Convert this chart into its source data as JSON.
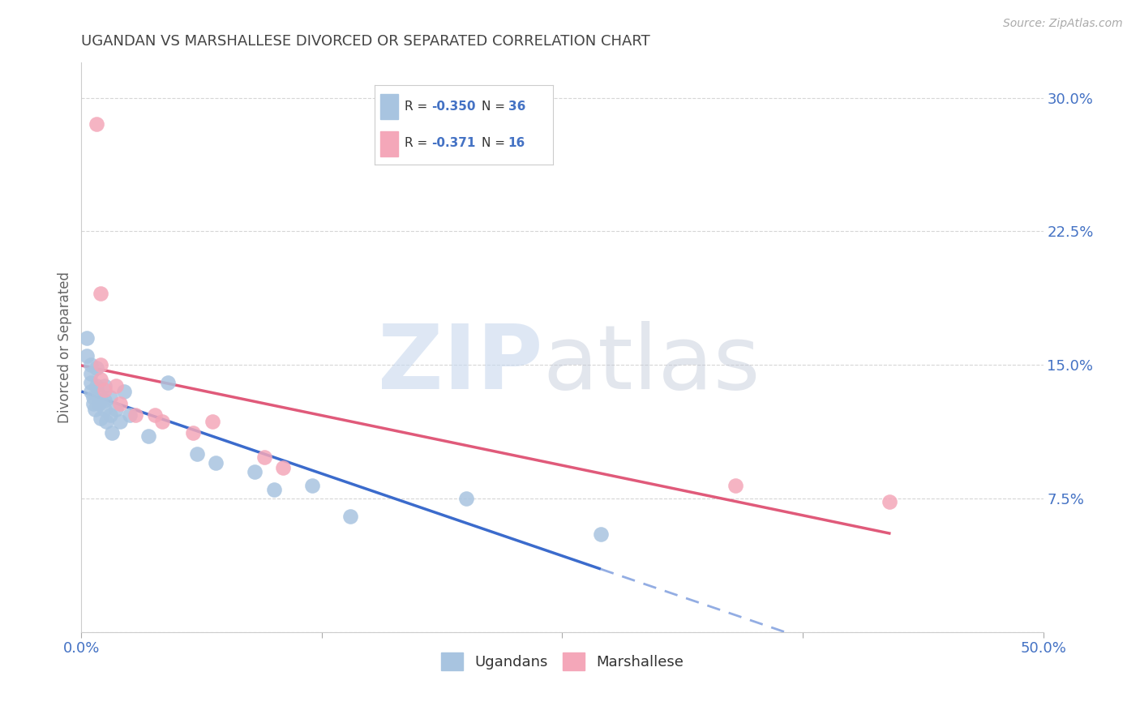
{
  "title": "UGANDAN VS MARSHALLESE DIVORCED OR SEPARATED CORRELATION CHART",
  "source": "Source: ZipAtlas.com",
  "ylabel_label": "Divorced or Separated",
  "xlim": [
    0.0,
    0.5
  ],
  "ylim": [
    0.0,
    0.32
  ],
  "ugandan_R": "-0.350",
  "ugandan_N": "36",
  "marshallese_R": "-0.371",
  "marshallese_N": "16",
  "ugandan_color": "#a8c4e0",
  "marshallese_color": "#f4a7b9",
  "ugandan_line_color": "#3b6bcc",
  "marshallese_line_color": "#e05a7a",
  "watermark_zip": "ZIP",
  "watermark_atlas": "atlas",
  "ugandan_points": [
    [
      0.003,
      0.165
    ],
    [
      0.003,
      0.155
    ],
    [
      0.005,
      0.15
    ],
    [
      0.005,
      0.145
    ],
    [
      0.005,
      0.14
    ],
    [
      0.005,
      0.135
    ],
    [
      0.006,
      0.132
    ],
    [
      0.006,
      0.128
    ],
    [
      0.007,
      0.125
    ],
    [
      0.008,
      0.148
    ],
    [
      0.008,
      0.138
    ],
    [
      0.009,
      0.133
    ],
    [
      0.009,
      0.128
    ],
    [
      0.01,
      0.13
    ],
    [
      0.01,
      0.12
    ],
    [
      0.012,
      0.138
    ],
    [
      0.012,
      0.13
    ],
    [
      0.012,
      0.125
    ],
    [
      0.013,
      0.118
    ],
    [
      0.015,
      0.132
    ],
    [
      0.015,
      0.122
    ],
    [
      0.016,
      0.112
    ],
    [
      0.018,
      0.125
    ],
    [
      0.02,
      0.118
    ],
    [
      0.022,
      0.135
    ],
    [
      0.025,
      0.122
    ],
    [
      0.035,
      0.11
    ],
    [
      0.045,
      0.14
    ],
    [
      0.06,
      0.1
    ],
    [
      0.07,
      0.095
    ],
    [
      0.09,
      0.09
    ],
    [
      0.1,
      0.08
    ],
    [
      0.12,
      0.082
    ],
    [
      0.14,
      0.065
    ],
    [
      0.2,
      0.075
    ],
    [
      0.27,
      0.055
    ]
  ],
  "marshallese_points": [
    [
      0.008,
      0.285
    ],
    [
      0.01,
      0.19
    ],
    [
      0.01,
      0.15
    ],
    [
      0.01,
      0.142
    ],
    [
      0.012,
      0.136
    ],
    [
      0.018,
      0.138
    ],
    [
      0.02,
      0.128
    ],
    [
      0.028,
      0.122
    ],
    [
      0.038,
      0.122
    ],
    [
      0.042,
      0.118
    ],
    [
      0.058,
      0.112
    ],
    [
      0.068,
      0.118
    ],
    [
      0.095,
      0.098
    ],
    [
      0.105,
      0.092
    ],
    [
      0.34,
      0.082
    ],
    [
      0.42,
      0.073
    ]
  ],
  "grid_color": "#cccccc",
  "background_color": "#ffffff",
  "title_color": "#444444",
  "axis_label_color": "#666666",
  "tick_label_color": "#4472c4",
  "source_color": "#aaaaaa",
  "ytick_positions": [
    0.0,
    0.075,
    0.15,
    0.225,
    0.3
  ],
  "ytick_labels": [
    "",
    "7.5%",
    "15.0%",
    "22.5%",
    "30.0%"
  ],
  "xtick_positions": [
    0.0,
    0.125,
    0.25,
    0.375,
    0.5
  ],
  "xtick_labels": [
    "0.0%",
    "",
    "",
    "",
    "50.0%"
  ]
}
